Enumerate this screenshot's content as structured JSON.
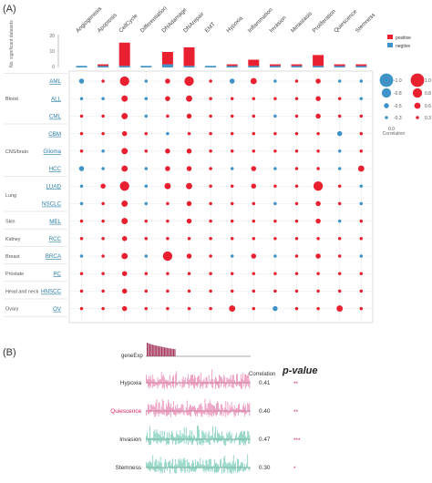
{
  "panel_a": {
    "label": "(A)",
    "bar_axis_label": "No. significant datasets",
    "bar_ticks": [
      "20",
      "10",
      "0"
    ],
    "legend_bar": [
      {
        "label": "positive",
        "color": "#e8202f"
      },
      {
        "label": "negtive",
        "color": "#3f93c6"
      }
    ],
    "legend_corr": {
      "title": "Correlation",
      "negative_values": [
        "-1.0",
        "-0.8",
        "-0.5",
        "-0.3",
        "0.0"
      ],
      "positive_values": [
        "1.0",
        "0.8",
        "0.6",
        "0.3"
      ]
    },
    "states": [
      "Angiogenesis",
      "Apoptosis",
      "CellCycle",
      "Differentiation",
      "DNAdamage",
      "DNArepair",
      "EMT",
      "Hypoxia",
      "Inflammation",
      "Invasion",
      "Metastasis",
      "Proliferation",
      "Quiescence",
      "Stemness"
    ],
    "tissue_groups": [
      {
        "name": "Blood",
        "rows": [
          "AML",
          "ALL",
          "CML"
        ]
      },
      {
        "name": "CNS/brain",
        "rows": [
          "CBM",
          "Glioma",
          "HCC"
        ]
      },
      {
        "name": "Lung",
        "rows": [
          "LUAD",
          "NSCLC"
        ]
      },
      {
        "name": "Skin",
        "rows": [
          "MEL"
        ]
      },
      {
        "name": "Kidney",
        "rows": [
          "RCC"
        ]
      },
      {
        "name": "Breast",
        "rows": [
          "BRCA"
        ]
      },
      {
        "name": "Prostate",
        "rows": [
          "PC"
        ]
      },
      {
        "name": "Head and neck",
        "rows": [
          "HNSCC"
        ]
      },
      {
        "name": "Ovary",
        "rows": [
          "OV"
        ]
      }
    ]
  },
  "panel_b": {
    "label": "(B)",
    "top_track": "geneExp",
    "correlation_header": "Correlation",
    "pvalue_header": "p-value",
    "tracks": [
      {
        "name": "Hypoxia",
        "correlation": "0.41",
        "stars": "**",
        "color": "#e36aa0",
        "highlight": false
      },
      {
        "name": "Quiescence",
        "correlation": "0.40",
        "stars": "**",
        "color": "#e36aa0",
        "highlight": true
      },
      {
        "name": "Invasion",
        "correlation": "0.47",
        "stars": "***",
        "color": "#57bfa3",
        "highlight": false
      },
      {
        "name": "Stemness",
        "correlation": "0.30",
        "stars": "*",
        "color": "#57bfa3",
        "highlight": false
      }
    ]
  },
  "chart_data": [
    {
      "type": "bar",
      "categories": [
        "Angiogenesis",
        "Apoptosis",
        "CellCycle",
        "Differentiation",
        "DNAdamage",
        "DNArepair",
        "EMT",
        "Hypoxia",
        "Inflammation",
        "Invasion",
        "Metastasis",
        "Proliferation",
        "Quiescence",
        "Stemness"
      ],
      "series": [
        {
          "name": "positive",
          "values": [
            0,
            1,
            15,
            0,
            8,
            12,
            0,
            1,
            4,
            1,
            1,
            7,
            1,
            1
          ]
        },
        {
          "name": "negtive",
          "values": [
            1,
            1,
            1,
            1,
            2,
            1,
            1,
            1,
            1,
            1,
            1,
            1,
            1,
            1
          ]
        }
      ],
      "ylabel": "No. significant datasets",
      "ylim": [
        0,
        20
      ]
    },
    {
      "type": "scatter",
      "x_categories": [
        "Angiogenesis",
        "Apoptosis",
        "CellCycle",
        "Differentiation",
        "DNAdamage",
        "DNArepair",
        "EMT",
        "Hypoxia",
        "Inflammation",
        "Invasion",
        "Metastasis",
        "Proliferation",
        "Quiescence",
        "Stemness"
      ],
      "y_categories": [
        "AML",
        "ALL",
        "CML",
        "CBM",
        "Glioma",
        "HCC",
        "LUAD",
        "NSCLC",
        "MEL",
        "RCC",
        "BRCA",
        "PC",
        "HNSCC",
        "OV"
      ],
      "correlation": [
        [
          -0.5,
          0.3,
          0.8,
          -0.3,
          0.5,
          0.8,
          0.3,
          -0.5,
          0.6,
          -0.3,
          0.3,
          0.5,
          -0.3,
          -0.3
        ],
        [
          -0.3,
          -0.3,
          0.6,
          -0.3,
          0.5,
          0.6,
          0.3,
          0.3,
          0.3,
          0.3,
          0.3,
          0.5,
          0.3,
          -0.3
        ],
        [
          0.3,
          0.3,
          0.6,
          -0.3,
          0.3,
          0.5,
          0.3,
          0.3,
          0.3,
          -0.3,
          0.3,
          0.5,
          0.3,
          0.3
        ],
        [
          0.3,
          0.3,
          0.5,
          0.3,
          -0.3,
          0.3,
          0.3,
          0.3,
          0.3,
          0.3,
          0.3,
          0.3,
          -0.5,
          0.3
        ],
        [
          0.3,
          -0.3,
          0.6,
          0.3,
          0.5,
          0.5,
          0.3,
          0.3,
          0.3,
          0.3,
          0.3,
          0.3,
          -0.3,
          0.3
        ],
        [
          -0.5,
          -0.3,
          0.6,
          -0.3,
          0.5,
          0.5,
          0.3,
          -0.3,
          0.5,
          -0.3,
          0.3,
          0.3,
          -0.3,
          0.6
        ],
        [
          -0.3,
          0.5,
          0.8,
          -0.3,
          0.6,
          0.6,
          0.3,
          0.3,
          0.5,
          0.3,
          0.3,
          0.8,
          0.3,
          -0.3
        ],
        [
          -0.3,
          0.3,
          0.6,
          -0.3,
          0.3,
          0.5,
          0.3,
          0.3,
          0.3,
          -0.3,
          0.3,
          0.5,
          0.3,
          -0.3
        ],
        [
          0.3,
          0.3,
          0.6,
          0.3,
          0.3,
          0.5,
          0.3,
          0.3,
          0.3,
          0.3,
          0.3,
          0.5,
          -0.3,
          0.3
        ],
        [
          0.3,
          0.3,
          0.5,
          0.3,
          0.3,
          0.3,
          0.3,
          0.3,
          0.3,
          0.3,
          0.3,
          0.3,
          0.3,
          0.3
        ],
        [
          -0.3,
          0.3,
          0.6,
          -0.3,
          0.8,
          0.5,
          0.3,
          -0.3,
          0.5,
          -0.3,
          0.3,
          0.5,
          0.3,
          -0.3
        ],
        [
          0.3,
          0.3,
          0.5,
          0.3,
          0.3,
          0.3,
          0.3,
          0.3,
          0.3,
          0.3,
          0.3,
          0.3,
          0.3,
          0.3
        ],
        [
          0.3,
          0.3,
          0.5,
          0.3,
          0.3,
          0.3,
          0.3,
          0.3,
          0.3,
          0.3,
          0.3,
          0.3,
          0.3,
          0.3
        ],
        [
          0.3,
          0.3,
          0.5,
          0.3,
          0.3,
          0.3,
          0.3,
          0.6,
          0.3,
          -0.5,
          0.3,
          0.3,
          0.6,
          0.3
        ]
      ],
      "color_positive": "#e8202f",
      "color_negative": "#3f93c6",
      "legend": "right"
    },
    {
      "type": "bar",
      "series": [
        {
          "name": "geneExp",
          "values": [
            1.0,
            0.95,
            0.91,
            0.88,
            0.85,
            0.83,
            0.8,
            0.78,
            0.76,
            0.74,
            0.72,
            0.7,
            0.68,
            0.66,
            0.64,
            0.62,
            0.6,
            0.58,
            0.57,
            0.55,
            0.54,
            0.52
          ]
        },
        {
          "name": "Hypoxia",
          "correlation": 0.41,
          "pvalue": "**"
        },
        {
          "name": "Quiescence",
          "correlation": 0.4,
          "pvalue": "**"
        },
        {
          "name": "Invasion",
          "correlation": 0.47,
          "pvalue": "***"
        },
        {
          "name": "Stemness",
          "correlation": 0.3,
          "pvalue": "*"
        }
      ]
    }
  ]
}
